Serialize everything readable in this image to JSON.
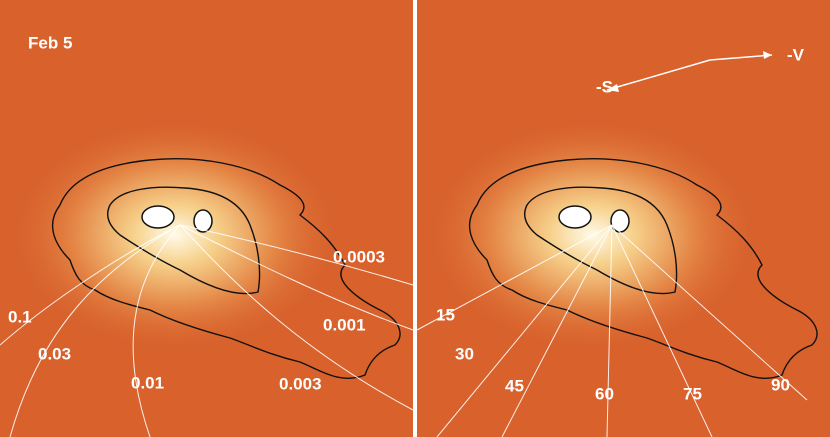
{
  "left_panel": {
    "title": "Feb 5",
    "labels": [
      "0.0003",
      "0.001",
      "0.003",
      "0.01",
      "0.03",
      "0.1"
    ]
  },
  "right_panel": {
    "directions": [
      "-S",
      "-V"
    ],
    "labels": [
      "15",
      "30",
      "45",
      "60",
      "75",
      "90"
    ]
  }
}
